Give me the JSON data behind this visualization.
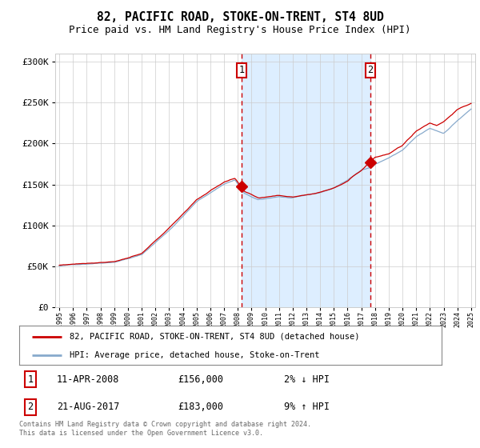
{
  "title": "82, PACIFIC ROAD, STOKE-ON-TRENT, ST4 8UD",
  "subtitle": "Price paid vs. HM Land Registry's House Price Index (HPI)",
  "legend_line1": "82, PACIFIC ROAD, STOKE-ON-TRENT, ST4 8UD (detached house)",
  "legend_line2": "HPI: Average price, detached house, Stoke-on-Trent",
  "annotation1_date": "11-APR-2008",
  "annotation1_price": "£156,000",
  "annotation1_hpi": "2% ↓ HPI",
  "annotation2_date": "21-AUG-2017",
  "annotation2_price": "£183,000",
  "annotation2_hpi": "9% ↑ HPI",
  "footnote": "Contains HM Land Registry data © Crown copyright and database right 2024.\nThis data is licensed under the Open Government Licence v3.0.",
  "red_color": "#cc0000",
  "blue_color": "#88aacc",
  "shading_color": "#ddeeff",
  "background_color": "#ffffff",
  "grid_color": "#cccccc",
  "title_fontsize": 10.5,
  "subtitle_fontsize": 9,
  "ylim": [
    0,
    310000
  ],
  "start_year": 1995,
  "end_year": 2025,
  "vline1_year": 2008.27,
  "vline2_year": 2017.64,
  "sale1_year": 2008.27,
  "sale1_price": 156000,
  "sale2_year": 2017.64,
  "sale2_price": 183000,
  "anchor_years": [
    1995,
    1997,
    1999,
    2001,
    2003,
    2005,
    2007.0,
    2007.8,
    2008.5,
    2009.5,
    2010,
    2011,
    2012,
    2013,
    2014,
    2015,
    2016,
    2016.5,
    2017.0,
    2017.8,
    2018,
    2019,
    2020,
    2021,
    2022,
    2022.5,
    2023,
    2024,
    2025
  ],
  "anchor_hpi": [
    50000,
    53000,
    56000,
    65000,
    95000,
    130000,
    152000,
    157000,
    140000,
    132000,
    133000,
    136000,
    134000,
    137000,
    140000,
    146000,
    155000,
    162000,
    168000,
    172000,
    175000,
    183000,
    192000,
    208000,
    218000,
    215000,
    212000,
    228000,
    242000
  ],
  "anchor_red": [
    51000,
    54000,
    57000,
    66000,
    97000,
    132000,
    154000,
    158000,
    141000,
    133000,
    134000,
    137000,
    135000,
    138000,
    141000,
    147000,
    156000,
    163000,
    169000,
    183000,
    186000,
    190000,
    200000,
    218000,
    228000,
    225000,
    230000,
    245000,
    252000
  ]
}
